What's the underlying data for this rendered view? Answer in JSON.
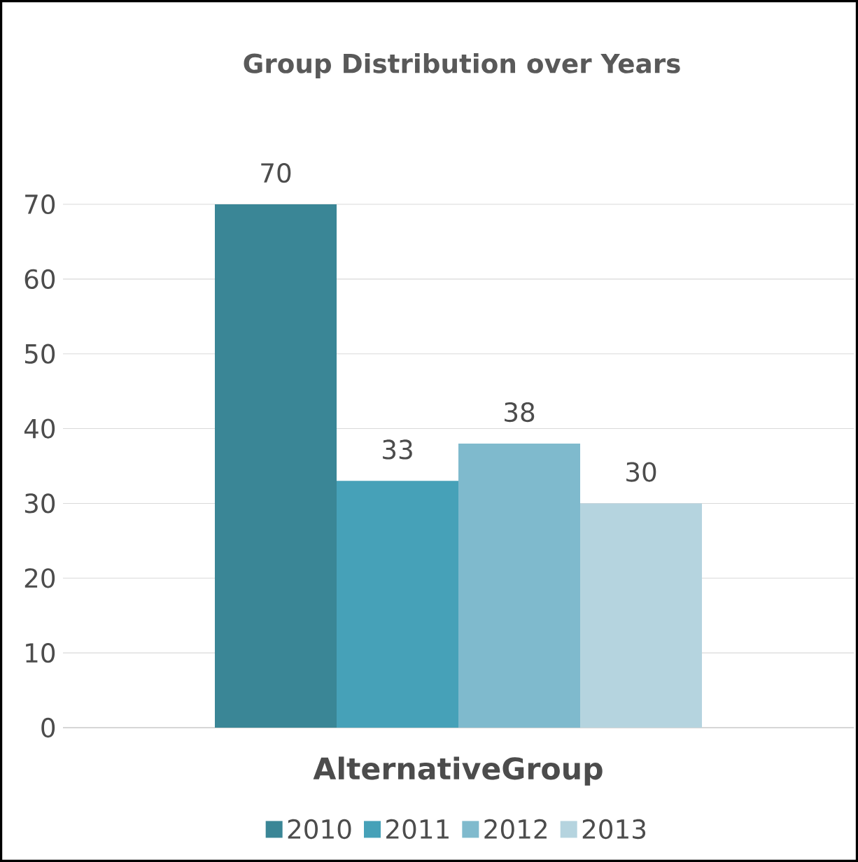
{
  "chart_data": {
    "type": "bar",
    "title": "Group Distribution over Years",
    "categories": [
      "AlternativeGroup"
    ],
    "series": [
      {
        "name": "2010",
        "color": "#3a8696",
        "values": [
          70
        ]
      },
      {
        "name": "2011",
        "color": "#46a1b8",
        "values": [
          33
        ]
      },
      {
        "name": "2012",
        "color": "#7fbacd",
        "values": [
          38
        ]
      },
      {
        "name": "2013",
        "color": "#b5d4df",
        "values": [
          30
        ]
      }
    ],
    "ylim": [
      0,
      70
    ],
    "yticks": [
      0,
      10,
      20,
      30,
      40,
      50,
      60,
      70
    ],
    "grid": "y",
    "legend": "bottom",
    "data_labels": true
  }
}
